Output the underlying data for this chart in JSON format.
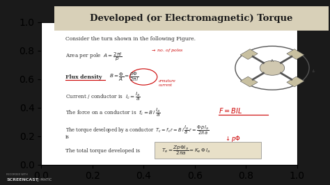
{
  "title": "Developed (or Electromagnetic) Torque",
  "bg_outer": "#1a1a1a",
  "bg_slide": "#f5f0e8",
  "bg_title_box": "#d8d0b8",
  "title_color": "#1a1a1a",
  "body_color": "#2a2a2a",
  "red_color": "#cc0000",
  "underline_color": "#cc0000",
  "highlight_box_color": "#e8e0c8",
  "screencast_text": "SCREENCAST-O-MATIC",
  "lines": [
    "Consider the turn shown in the following Figure.",
    "Area per pole",
    "Flux density",
    "Current / conductor is",
    "The force on a conductor is",
    "The torque developed by a conductor",
    "is",
    "The total torque developed is"
  ]
}
